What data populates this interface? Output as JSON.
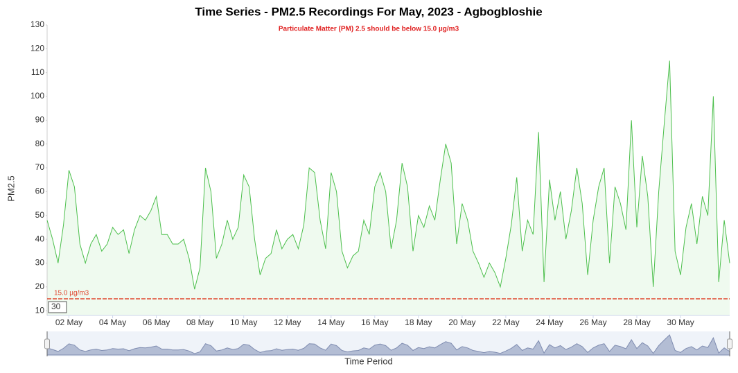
{
  "chart_data": {
    "type": "area",
    "title": "Time Series - PM2.5 Recordings For May, 2023 - Agbogbloshie",
    "subtitle": "Particulate Matter (PM) 2.5 should be below 15.0 µg/m3",
    "y_label": "PM2.5",
    "x_label": "Time Period",
    "color": "#4cbf4c",
    "fill": "#effaef",
    "threshold": {
      "value": 15,
      "label": "15.0 µg/m3",
      "color": "#e0462f"
    },
    "zoom_input": 30,
    "x": [
      1,
      1.25,
      1.5,
      1.75,
      2,
      2.25,
      2.5,
      2.75,
      3,
      3.25,
      3.5,
      3.75,
      4,
      4.25,
      4.5,
      4.75,
      5,
      5.25,
      5.5,
      5.75,
      6,
      6.25,
      6.5,
      6.75,
      7,
      7.25,
      7.5,
      7.75,
      8,
      8.25,
      8.5,
      8.75,
      9,
      9.25,
      9.5,
      9.75,
      10,
      10.25,
      10.5,
      10.75,
      11,
      11.25,
      11.5,
      11.75,
      12,
      12.25,
      12.5,
      12.75,
      13,
      13.25,
      13.5,
      13.75,
      14,
      14.25,
      14.5,
      14.75,
      15,
      15.25,
      15.5,
      15.75,
      16,
      16.25,
      16.5,
      16.75,
      17,
      17.25,
      17.5,
      17.75,
      18,
      18.25,
      18.5,
      18.75,
      19,
      19.25,
      19.5,
      19.75,
      20,
      20.25,
      20.5,
      20.75,
      21,
      21.25,
      21.5,
      21.75,
      22,
      22.25,
      22.5,
      22.75,
      23,
      23.25,
      23.5,
      23.75,
      24,
      24.25,
      24.5,
      24.75,
      25,
      25.25,
      25.5,
      25.75,
      26,
      26.25,
      26.5,
      26.75,
      27,
      27.25,
      27.5,
      27.75,
      28,
      28.25,
      28.5,
      28.75,
      29,
      29.25,
      29.5,
      29.75,
      30,
      30.25,
      30.5,
      30.75,
      31,
      31.25,
      31.5,
      31.75,
      32,
      32.25
    ],
    "values": [
      48,
      40,
      30,
      46,
      69,
      62,
      38,
      30,
      38,
      42,
      35,
      38,
      45,
      42,
      44,
      34,
      44,
      50,
      48,
      52,
      58,
      42,
      42,
      38,
      38,
      40,
      32,
      19,
      28,
      70,
      60,
      32,
      38,
      48,
      40,
      45,
      67,
      62,
      40,
      25,
      32,
      34,
      44,
      36,
      40,
      42,
      36,
      46,
      70,
      68,
      48,
      36,
      68,
      60,
      35,
      28,
      33,
      35,
      48,
      42,
      62,
      68,
      60,
      36,
      48,
      72,
      62,
      35,
      50,
      45,
      54,
      48,
      65,
      80,
      72,
      38,
      55,
      48,
      35,
      30,
      24,
      30,
      26,
      20,
      32,
      46,
      66,
      35,
      48,
      42,
      85,
      22,
      65,
      48,
      60,
      40,
      52,
      70,
      55,
      25,
      48,
      62,
      70,
      30,
      62,
      55,
      44,
      90,
      45,
      75,
      58,
      20,
      60,
      88,
      115,
      35,
      25,
      45,
      55,
      38,
      58,
      50,
      100,
      22,
      48,
      30
    ],
    "xlim": [
      1,
      32.25
    ],
    "ylim": [
      8,
      130
    ],
    "yticks": [
      10,
      20,
      30,
      40,
      50,
      60,
      70,
      80,
      90,
      100,
      110,
      120,
      130
    ],
    "xticks": [
      {
        "value": 2,
        "label": "02 May"
      },
      {
        "value": 4,
        "label": "04 May"
      },
      {
        "value": 6,
        "label": "06 May"
      },
      {
        "value": 8,
        "label": "08 May"
      },
      {
        "value": 10,
        "label": "10 May"
      },
      {
        "value": 12,
        "label": "12 May"
      },
      {
        "value": 14,
        "label": "14 May"
      },
      {
        "value": 16,
        "label": "16 May"
      },
      {
        "value": 18,
        "label": "18 May"
      },
      {
        "value": 20,
        "label": "20 May"
      },
      {
        "value": 22,
        "label": "22 May"
      },
      {
        "value": 24,
        "label": "24 May"
      },
      {
        "value": 26,
        "label": "26 May"
      },
      {
        "value": 28,
        "label": "28 May"
      },
      {
        "value": 30,
        "label": "30 May"
      }
    ]
  }
}
